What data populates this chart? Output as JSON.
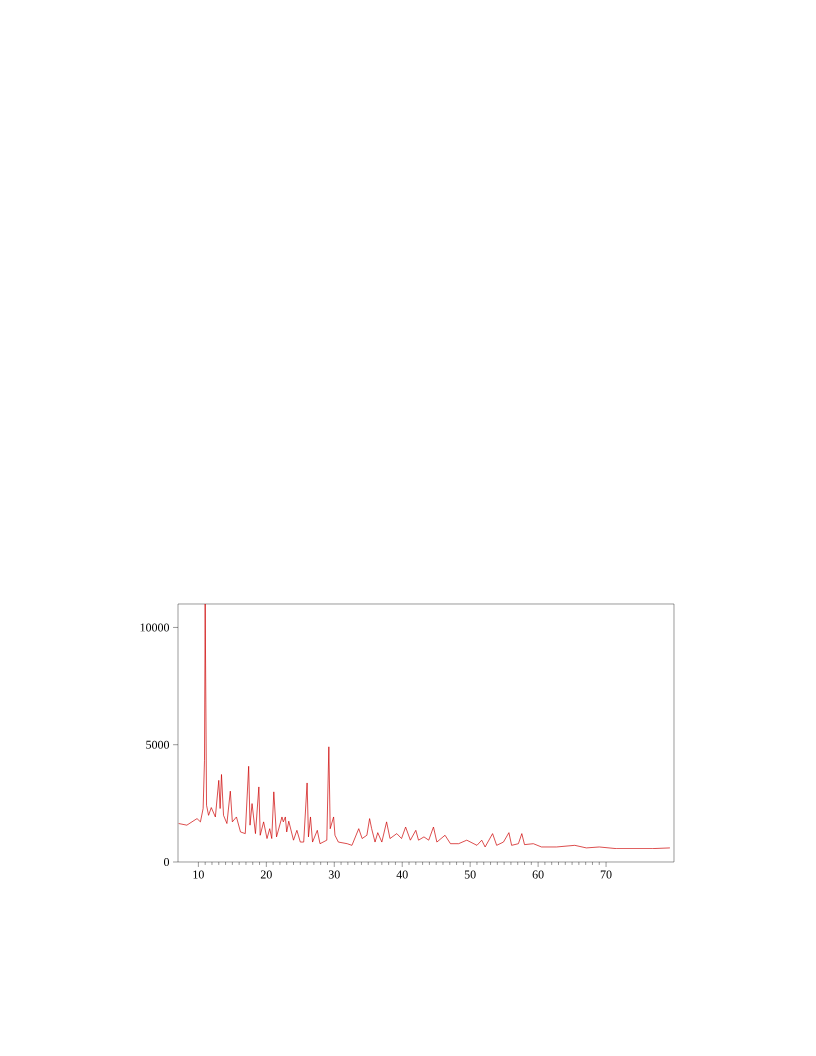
{
  "chart_data": {
    "type": "line",
    "xlim": [
      7,
      80
    ],
    "ylim": [
      0,
      11000
    ],
    "xticks": [
      10,
      20,
      30,
      40,
      50,
      60,
      70
    ],
    "yticks": [
      0,
      5000,
      10000
    ],
    "grid": false,
    "marker": "none",
    "line_style": "solid",
    "series": [
      {
        "color": "#cc0000",
        "x": [
          7.1,
          8.3,
          9.8,
          10.3,
          10.7,
          10.9,
          11.0,
          11.2,
          11.5,
          11.9,
          12.5,
          13.0,
          13.2,
          13.4,
          13.7,
          14.2,
          14.7,
          15.0,
          15.6,
          16.2,
          16.9,
          17.4,
          17.6,
          17.9,
          18.4,
          18.9,
          19.1,
          19.6,
          20.1,
          20.5,
          20.8,
          21.1,
          21.5,
          22.3,
          22.5,
          22.8,
          23.0,
          23.3,
          24.0,
          24.5,
          25.0,
          25.5,
          26.0,
          26.2,
          26.5,
          26.8,
          27.5,
          27.9,
          28.9,
          29.2,
          29.4,
          29.9,
          30.1,
          30.6,
          31.9,
          32.6,
          33.6,
          34.1,
          34.8,
          35.2,
          35.5,
          36.0,
          36.4,
          37.0,
          37.7,
          38.2,
          39.2,
          39.9,
          40.5,
          41.2,
          42.0,
          42.4,
          43.2,
          43.9,
          44.6,
          45.1,
          46.3,
          47.1,
          48.3,
          49.5,
          51.0,
          51.7,
          52.2,
          53.3,
          53.9,
          54.9,
          55.7,
          56.1,
          57.1,
          57.6,
          58.0,
          59.3,
          60.5,
          62.7,
          65.4,
          67.1,
          69.0,
          71.5,
          73.9,
          76.8,
          79.4
        ],
        "values": [
          1640,
          1570,
          1850,
          1710,
          2280,
          4340,
          11000,
          2420,
          1990,
          2320,
          1920,
          3480,
          2280,
          3730,
          1990,
          1640,
          3020,
          1710,
          1920,
          1280,
          1210,
          4080,
          1570,
          2490,
          1210,
          3200,
          1140,
          1710,
          1000,
          1420,
          1000,
          2990,
          1070,
          1920,
          1710,
          1920,
          1280,
          1740,
          930,
          1350,
          850,
          850,
          3370,
          1070,
          1920,
          850,
          1350,
          780,
          930,
          4910,
          1420,
          1920,
          1140,
          850,
          780,
          710,
          1420,
          1000,
          1140,
          1850,
          1420,
          850,
          1250,
          850,
          1710,
          1000,
          1210,
          1000,
          1490,
          930,
          1350,
          930,
          1070,
          930,
          1490,
          850,
          1140,
          780,
          780,
          930,
          710,
          930,
          640,
          1210,
          710,
          850,
          1250,
          710,
          780,
          1210,
          740,
          780,
          640,
          640,
          710,
          600,
          640,
          570,
          570,
          570,
          600
        ]
      }
    ]
  }
}
